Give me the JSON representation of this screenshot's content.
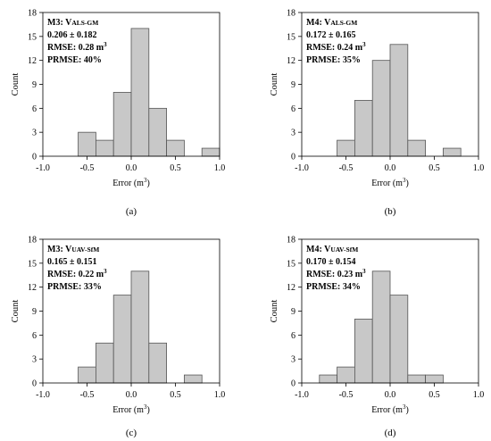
{
  "chart_data": [
    {
      "type": "bar",
      "panel": "(a)",
      "annotation": {
        "model": "M3: V",
        "sub": "ALS-GM",
        "stats": "0.206 ± 0.182",
        "rmse": "RMSE: 0.28 m",
        "rmse_sup": "3",
        "prmse": "PRMSE: 40%"
      },
      "xlabel": "Error (m",
      "xlabel_sup": "3",
      "xlabel_end": ")",
      "ylabel": "Count",
      "xlim": [
        -1.0,
        1.0
      ],
      "ylim": [
        0,
        18
      ],
      "xticks": [
        "-1.0",
        "-0.5",
        "0.0",
        "0.5",
        "1.0"
      ],
      "yticks": [
        "0",
        "3",
        "6",
        "9",
        "12",
        "15",
        "18"
      ],
      "bin_width": 0.2,
      "bin_starts": [
        -0.6,
        -0.4,
        -0.2,
        0.0,
        0.2,
        0.4,
        0.6,
        0.8
      ],
      "values": [
        3,
        2,
        8,
        16,
        6,
        2,
        0,
        1
      ]
    },
    {
      "type": "bar",
      "panel": "(b)",
      "annotation": {
        "model": "M4: V",
        "sub": "ALS-GM",
        "stats": "0.172 ± 0.165",
        "rmse": "RMSE: 0.24 m",
        "rmse_sup": "3",
        "prmse": "PRMSE: 35%"
      },
      "xlabel": "Error (m",
      "xlabel_sup": "3",
      "xlabel_end": ")",
      "ylabel": "Count",
      "xlim": [
        -1.0,
        1.0
      ],
      "ylim": [
        0,
        18
      ],
      "xticks": [
        "-1.0",
        "-0.5",
        "0.0",
        "0.5",
        "1.0"
      ],
      "yticks": [
        "0",
        "3",
        "6",
        "9",
        "12",
        "15",
        "18"
      ],
      "bin_width": 0.2,
      "bin_starts": [
        -0.6,
        -0.4,
        -0.2,
        0.0,
        0.2,
        0.4,
        0.6
      ],
      "values": [
        2,
        7,
        12,
        14,
        2,
        0,
        1
      ]
    },
    {
      "type": "bar",
      "panel": "(c)",
      "annotation": {
        "model": "M3: V",
        "sub": "UAV-SfM",
        "stats": "0.165 ± 0.151",
        "rmse": "RMSE: 0.22 m",
        "rmse_sup": "3",
        "prmse": "PRMSE: 33%"
      },
      "xlabel": "Error (m",
      "xlabel_sup": "3",
      "xlabel_end": ")",
      "ylabel": "Count",
      "xlim": [
        -1.0,
        1.0
      ],
      "ylim": [
        0,
        18
      ],
      "xticks": [
        "-1.0",
        "-0.5",
        "0.0",
        "0.5",
        "1.0"
      ],
      "yticks": [
        "0",
        "3",
        "6",
        "9",
        "12",
        "15",
        "18"
      ],
      "bin_width": 0.2,
      "bin_starts": [
        -0.6,
        -0.4,
        -0.2,
        0.0,
        0.2,
        0.4,
        0.6
      ],
      "values": [
        2,
        5,
        11,
        14,
        5,
        0,
        1
      ]
    },
    {
      "type": "bar",
      "panel": "(d)",
      "annotation": {
        "model": "M4: V",
        "sub": "UAV-SfM",
        "stats": "0.170 ± 0.154",
        "rmse": "RMSE: 0.23 m",
        "rmse_sup": "3",
        "prmse": "PRMSE: 34%"
      },
      "xlabel": "Error (m",
      "xlabel_sup": "3",
      "xlabel_end": ")",
      "ylabel": "Count",
      "xlim": [
        -1.0,
        1.0
      ],
      "ylim": [
        0,
        18
      ],
      "xticks": [
        "-1.0",
        "-0.5",
        "0.0",
        "0.5",
        "1.0"
      ],
      "yticks": [
        "0",
        "3",
        "6",
        "9",
        "12",
        "15",
        "18"
      ],
      "bin_width": 0.2,
      "bin_starts": [
        -0.8,
        -0.6,
        -0.4,
        -0.2,
        0.0,
        0.2,
        0.4
      ],
      "values": [
        1,
        2,
        8,
        14,
        11,
        1,
        1
      ]
    }
  ],
  "colors": {
    "bar_fill": "#c8c8c8",
    "bar_stroke": "#555555",
    "axis": "#000000"
  }
}
